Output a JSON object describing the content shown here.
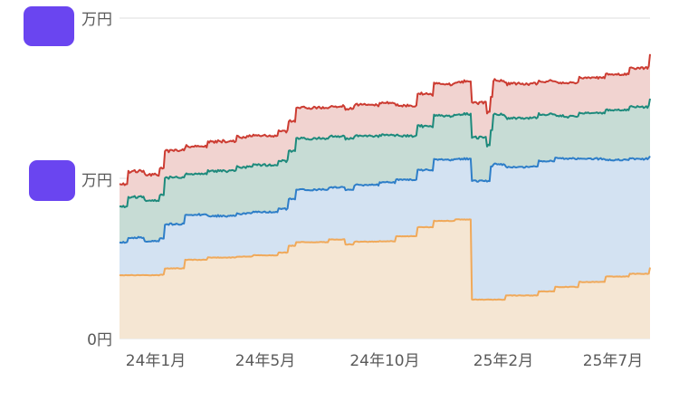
{
  "chart_data": {
    "type": "area",
    "stacked": true,
    "y_tick_labels": [
      "万円",
      "万円",
      "0円"
    ],
    "x_tick_labels": [
      "24年1月",
      "24年5月",
      "24年10月",
      "25年2月",
      "25年7月"
    ],
    "x_tick_dates": [
      "2024-01-01",
      "2024-05-01",
      "2024-10-01",
      "2025-02-01",
      "2025-07-01"
    ],
    "x_range": [
      "2023-11-10",
      "2025-08-14"
    ],
    "grid": "horizontal",
    "redacted_label_color": "#6a45f0",
    "series": [
      {
        "color": "#f0a95a",
        "fill": "#f5e6d3",
        "x": [
          "2023-11-10",
          "2023-12-28",
          "2024-01-03",
          "2024-01-28",
          "2024-02-25",
          "2024-03-30",
          "2024-04-20",
          "2024-05-20",
          "2024-06-01",
          "2024-06-10",
          "2024-07-20",
          "2024-08-10",
          "2024-08-20",
          "2024-09-20",
          "2024-10-10",
          "2024-11-05",
          "2024-11-25",
          "2024-12-20",
          "2025-01-10",
          "2025-02-20",
          "2025-04-01",
          "2025-04-20",
          "2025-05-20",
          "2025-06-20",
          "2025-07-20",
          "2025-08-14"
        ],
        "values": [
          140,
          141,
          155,
          174,
          179,
          181,
          184,
          190,
          205,
          213,
          219,
          208,
          214,
          215,
          226,
          246,
          260,
          263,
          86,
          95,
          104,
          114,
          125,
          137,
          143,
          157
        ]
      },
      {
        "color": "#2e7ec8",
        "fill": "#d3e2f2",
        "x": [
          "2023-11-10",
          "2023-11-20",
          "2023-12-10",
          "2023-12-28",
          "2024-01-03",
          "2024-01-28",
          "2024-02-25",
          "2024-03-30",
          "2024-04-20",
          "2024-05-20",
          "2024-06-01",
          "2024-06-10",
          "2024-07-20",
          "2024-08-10",
          "2024-08-20",
          "2024-09-20",
          "2024-10-10",
          "2024-11-05",
          "2024-11-25",
          "2024-12-20",
          "2025-01-10",
          "2025-02-01",
          "2025-02-05",
          "2025-02-20",
          "2025-04-01",
          "2025-04-20",
          "2025-05-20",
          "2025-06-20",
          "2025-07-20",
          "2025-08-14"
        ],
        "values": [
          73,
          83,
          75,
          79,
          98,
          100,
          92,
          95,
          96,
          96,
          104,
          116,
          115,
          121,
          125,
          130,
          125,
          126,
          135,
          134,
          262,
          293,
          299,
          284,
          288,
          284,
          272,
          258,
          254,
          246
        ]
      },
      {
        "color": "#1e8a7c",
        "fill": "#c7dcd5",
        "x": [
          "2023-11-10",
          "2023-11-20",
          "2023-12-28",
          "2024-01-03",
          "2024-01-28",
          "2024-02-25",
          "2024-03-30",
          "2024-04-20",
          "2024-05-20",
          "2024-06-10",
          "2024-07-20",
          "2024-08-20",
          "2024-09-20",
          "2024-10-10",
          "2024-11-05",
          "2024-11-25",
          "2024-12-20",
          "2025-01-10",
          "2025-01-28",
          "2025-02-05",
          "2025-02-20",
          "2025-04-01",
          "2025-04-20",
          "2025-05-20",
          "2025-06-20",
          "2025-07-20",
          "2025-08-14"
        ],
        "values": [
          80,
          90,
          96,
          103,
          90,
          100,
          103,
          104,
          106,
          113,
          113,
          108,
          105,
          97,
          97,
          97,
          98,
          96,
          79,
          110,
          108,
          103,
          93,
          101,
          110,
          115,
          126
        ]
      },
      {
        "color": "#cc3c32",
        "fill": "#f1d3d0",
        "x": [
          "2023-11-10",
          "2023-11-20",
          "2023-12-28",
          "2024-01-03",
          "2024-01-28",
          "2024-02-25",
          "2024-03-30",
          "2024-04-20",
          "2024-05-20",
          "2024-06-10",
          "2024-07-20",
          "2024-08-20",
          "2024-09-20",
          "2024-10-10",
          "2024-11-05",
          "2024-11-25",
          "2024-12-20",
          "2025-01-10",
          "2025-01-28",
          "2025-02-05",
          "2025-02-20",
          "2025-04-01",
          "2025-04-20",
          "2025-05-20",
          "2025-06-20",
          "2025-07-20",
          "2025-08-14"
        ],
        "values": [
          50,
          57,
          59,
          60,
          61,
          65,
          67,
          65,
          66,
          68,
          66,
          69,
          71,
          66,
          71,
          70,
          72,
          77,
          74,
          75,
          76,
          73,
          74,
          78,
          79,
          86,
          98
        ]
      }
    ]
  }
}
